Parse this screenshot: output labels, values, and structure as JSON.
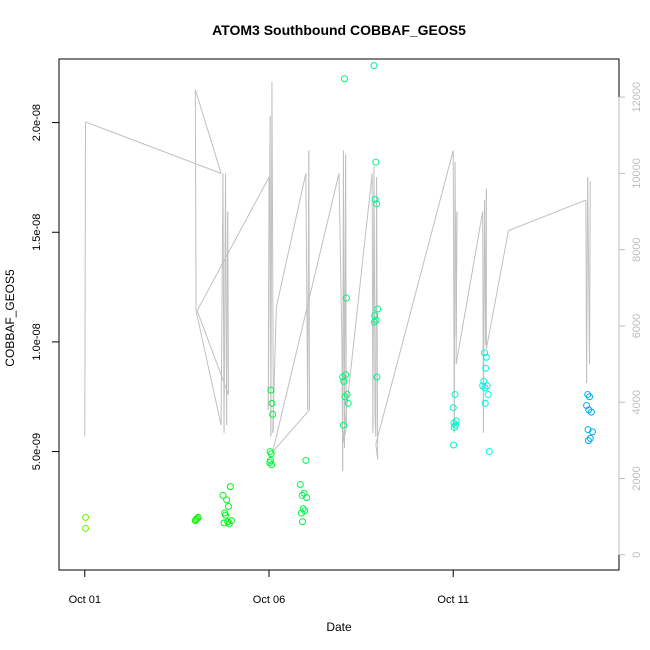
{
  "chart_data": {
    "type": "scatter",
    "title": "ATOM3 Southbound COBBAF_GEOS5",
    "xlabel": "Date",
    "ylabel": "COBBAF_GEOS5",
    "x_unit": "days",
    "x_ticks": [
      {
        "value": 0,
        "label": "Oct 01"
      },
      {
        "value": 5,
        "label": "Oct 06"
      },
      {
        "value": 10,
        "label": "Oct 11"
      }
    ],
    "xlim": [
      -0.7,
      14.5
    ],
    "ylim": [
      -4e-10,
      2.29e-08
    ],
    "y_ticks": [
      {
        "value": 5e-09,
        "label": "5.0e-09"
      },
      {
        "value": 1e-08,
        "label": "1.0e-08"
      },
      {
        "value": 1.5e-08,
        "label": "1.5e-08"
      },
      {
        "value": 2e-08,
        "label": "2.0e-08"
      }
    ],
    "y2lim": [
      -400,
      13000
    ],
    "y2_ticks": [
      {
        "value": 0,
        "label": "0"
      },
      {
        "value": 2000,
        "label": "2000"
      },
      {
        "value": 4000,
        "label": "4000"
      },
      {
        "value": 6000,
        "label": "6000"
      },
      {
        "value": 8000,
        "label": "8000"
      },
      {
        "value": 10000,
        "label": "10000"
      },
      {
        "value": 12000,
        "label": "12000"
      }
    ],
    "grid": false,
    "colors": {
      "line": "#c0c0c0",
      "axis": "#000000",
      "axis2": "#bdbdbd"
    },
    "scatter_series": {
      "color_by_day": "green-to-blue",
      "points": [
        [
          0.02,
          2e-09
        ],
        [
          0.02,
          1.5e-09
        ],
        [
          3.0,
          1.85e-09
        ],
        [
          3.05,
          1.95e-09
        ],
        [
          3.08,
          2e-09
        ],
        [
          3.02,
          1.9e-09
        ],
        [
          3.75,
          3e-09
        ],
        [
          3.8,
          2.2e-09
        ],
        [
          3.85,
          2.8e-09
        ],
        [
          3.9,
          2.5e-09
        ],
        [
          3.95,
          3.4e-09
        ],
        [
          3.78,
          1.75e-09
        ],
        [
          3.88,
          1.8e-09
        ],
        [
          3.92,
          1.7e-09
        ],
        [
          3.98,
          1.85e-09
        ],
        [
          3.82,
          2.1e-09
        ],
        [
          5.05,
          7.8e-09
        ],
        [
          5.08,
          7.2e-09
        ],
        [
          5.1,
          6.7e-09
        ],
        [
          5.03,
          5e-09
        ],
        [
          5.06,
          4.9e-09
        ],
        [
          5.02,
          4.5e-09
        ],
        [
          5.07,
          4.4e-09
        ],
        [
          5.04,
          4.6e-09
        ],
        [
          5.85,
          3.5e-09
        ],
        [
          5.9,
          3e-09
        ],
        [
          5.95,
          3.1e-09
        ],
        [
          6.0,
          4.6e-09
        ],
        [
          6.02,
          2.9e-09
        ],
        [
          5.88,
          2.2e-09
        ],
        [
          5.93,
          2.4e-09
        ],
        [
          5.97,
          2.3e-09
        ],
        [
          5.91,
          1.8e-09
        ],
        [
          7.05,
          2.2e-08
        ],
        [
          7.1,
          1.2e-08
        ],
        [
          7.0,
          8.4e-09
        ],
        [
          7.03,
          8.2e-09
        ],
        [
          7.08,
          8.5e-09
        ],
        [
          7.12,
          7.6e-09
        ],
        [
          7.06,
          7.5e-09
        ],
        [
          7.15,
          7.2e-09
        ],
        [
          7.02,
          6.2e-09
        ],
        [
          7.85,
          2.26e-08
        ],
        [
          7.9,
          1.82e-08
        ],
        [
          7.88,
          1.65e-08
        ],
        [
          7.92,
          1.63e-08
        ],
        [
          7.95,
          1.15e-08
        ],
        [
          7.87,
          1.12e-08
        ],
        [
          7.91,
          1.1e-08
        ],
        [
          7.86,
          1.09e-08
        ],
        [
          7.93,
          8.4e-09
        ],
        [
          10.05,
          7.6e-09
        ],
        [
          10.0,
          7e-09
        ],
        [
          10.08,
          6.4e-09
        ],
        [
          10.02,
          6.3e-09
        ],
        [
          10.03,
          6.1e-09
        ],
        [
          10.06,
          6.2e-09
        ],
        [
          10.01,
          5.3e-09
        ],
        [
          10.85,
          9.5e-09
        ],
        [
          10.9,
          9.3e-09
        ],
        [
          10.88,
          8.8e-09
        ],
        [
          10.83,
          8.2e-09
        ],
        [
          10.8,
          8e-09
        ],
        [
          10.86,
          7.9e-09
        ],
        [
          10.92,
          8e-09
        ],
        [
          10.95,
          7.6e-09
        ],
        [
          10.87,
          7.2e-09
        ],
        [
          10.98,
          5e-09
        ],
        [
          13.65,
          7.6e-09
        ],
        [
          13.7,
          7.5e-09
        ],
        [
          13.62,
          7.1e-09
        ],
        [
          13.68,
          6.9e-09
        ],
        [
          13.75,
          6.8e-09
        ],
        [
          13.66,
          6e-09
        ],
        [
          13.78,
          5.9e-09
        ],
        [
          13.72,
          5.6e-09
        ],
        [
          13.67,
          5.5e-09
        ]
      ]
    },
    "line_series": {
      "axis": "right",
      "points": [
        [
          0.0,
          3100
        ],
        [
          0.02,
          11350
        ],
        [
          3.7,
          10000
        ],
        [
          3.0,
          12200
        ],
        [
          3.02,
          6400
        ],
        [
          3.7,
          3400
        ],
        [
          3.75,
          10000
        ],
        [
          3.78,
          3200
        ],
        [
          3.82,
          10000
        ],
        [
          3.85,
          3400
        ],
        [
          3.88,
          9000
        ],
        [
          3.9,
          4200
        ],
        [
          3.05,
          6400
        ],
        [
          5.0,
          9900
        ],
        [
          4.98,
          3800
        ],
        [
          5.03,
          11500
        ],
        [
          5.05,
          3100
        ],
        [
          5.08,
          12400
        ],
        [
          5.12,
          3300
        ],
        [
          5.1,
          3200
        ],
        [
          5.2,
          6500
        ],
        [
          6.0,
          10000
        ],
        [
          6.05,
          3800
        ],
        [
          6.08,
          10600
        ],
        [
          6.1,
          3800
        ],
        [
          5.1,
          2700
        ],
        [
          6.9,
          10000
        ],
        [
          6.98,
          5500
        ],
        [
          7.0,
          2200
        ],
        [
          7.02,
          10600
        ],
        [
          7.05,
          2800
        ],
        [
          7.08,
          10500
        ],
        [
          7.1,
          3300
        ],
        [
          7.0,
          2900
        ],
        [
          7.8,
          10000
        ],
        [
          7.82,
          3200
        ],
        [
          7.85,
          10200
        ],
        [
          7.88,
          3500
        ],
        [
          7.9,
          3100
        ],
        [
          7.92,
          9900
        ],
        [
          7.95,
          2500
        ],
        [
          7.9,
          2900
        ],
        [
          10.0,
          10600
        ],
        [
          10.03,
          3200
        ],
        [
          10.05,
          10300
        ],
        [
          10.08,
          5700
        ],
        [
          10.1,
          9000
        ],
        [
          10.08,
          5000
        ],
        [
          10.8,
          9000
        ],
        [
          10.82,
          3200
        ],
        [
          10.85,
          9300
        ],
        [
          10.88,
          5500
        ],
        [
          10.9,
          9600
        ],
        [
          10.9,
          5400
        ],
        [
          11.5,
          8500
        ],
        [
          13.6,
          9300
        ],
        [
          13.62,
          4500
        ],
        [
          13.65,
          9900
        ],
        [
          13.7,
          5000
        ],
        [
          13.72,
          9800
        ]
      ]
    }
  }
}
